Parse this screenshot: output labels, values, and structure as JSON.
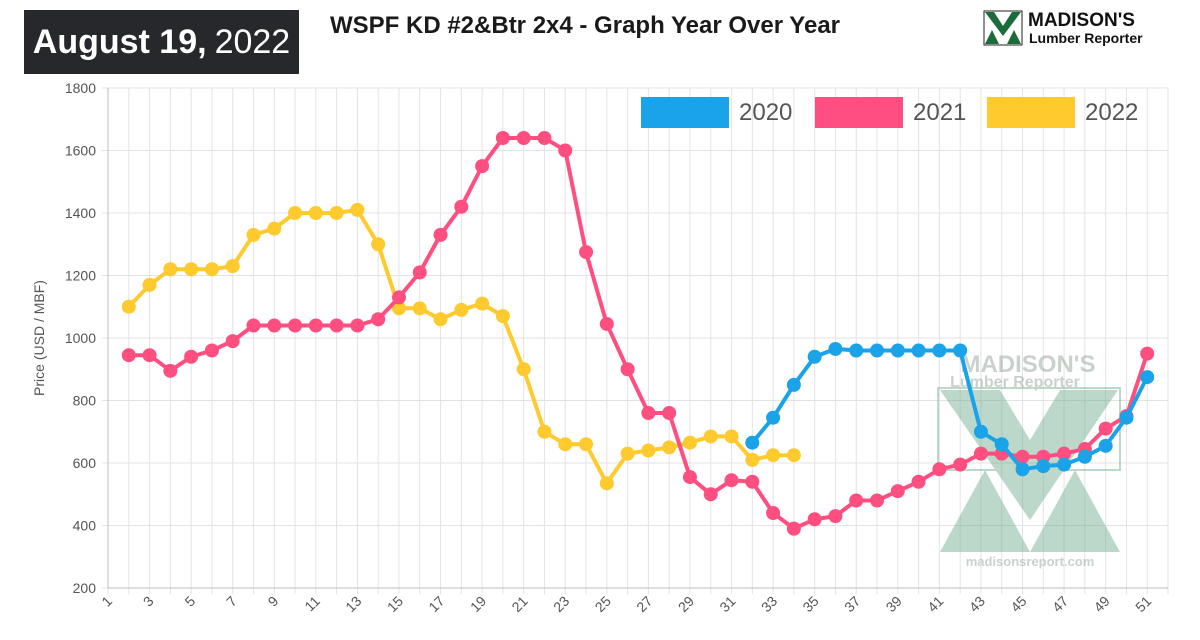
{
  "header": {
    "date_bold": "August 19,",
    "date_year": "2022",
    "title": "WSPF KD #2&Btr 2x4 - Graph Year Over Year"
  },
  "logo": {
    "line1": "MADISON'S",
    "line2": "Lumber Reporter",
    "icon": "madisons-logo-mark"
  },
  "watermark": {
    "line1": "MADISON'S",
    "line2": "Lumber Reporter",
    "url": "madisonsreport.com"
  },
  "chart_data": {
    "type": "line",
    "title": "WSPF KD #2&Btr 2x4 - Graph Year Over Year",
    "xlabel": "",
    "ylabel": "Price (USD / MBF)",
    "ylim": [
      200,
      1800
    ],
    "yticks": [
      200,
      400,
      600,
      800,
      1000,
      1200,
      1400,
      1600,
      1800
    ],
    "xlim": [
      1,
      52
    ],
    "xticks": [
      1,
      3,
      5,
      7,
      9,
      11,
      13,
      15,
      17,
      19,
      21,
      23,
      25,
      27,
      29,
      31,
      33,
      35,
      37,
      39,
      41,
      43,
      45,
      47,
      49,
      51
    ],
    "grid": true,
    "legend_position": "top-right",
    "series": [
      {
        "name": "2020",
        "color": "#1aa3e8",
        "x": [
          32,
          33,
          34,
          35,
          36,
          37,
          38,
          39,
          40,
          41,
          42,
          43,
          44,
          45,
          46,
          47,
          48,
          49,
          50,
          51
        ],
        "values": [
          665,
          745,
          850,
          940,
          965,
          960,
          960,
          960,
          960,
          960,
          960,
          700,
          660,
          580,
          590,
          595,
          620,
          655,
          745,
          875
        ]
      },
      {
        "name": "2021",
        "color": "#ff4f81",
        "x": [
          2,
          3,
          4,
          5,
          6,
          7,
          8,
          9,
          10,
          11,
          12,
          13,
          14,
          15,
          16,
          17,
          18,
          19,
          20,
          21,
          22,
          23,
          24,
          25,
          26,
          27,
          28,
          29,
          30,
          31,
          32,
          33,
          34,
          35,
          36,
          37,
          38,
          39,
          40,
          41,
          42,
          43,
          44,
          45,
          46,
          47,
          48,
          49,
          50,
          51
        ],
        "values": [
          945,
          945,
          895,
          940,
          960,
          990,
          1040,
          1040,
          1040,
          1040,
          1040,
          1040,
          1060,
          1130,
          1210,
          1330,
          1420,
          1550,
          1640,
          1640,
          1640,
          1600,
          1275,
          1045,
          900,
          760,
          760,
          555,
          500,
          545,
          540,
          440,
          390,
          420,
          430,
          480,
          480,
          510,
          540,
          580,
          595,
          630,
          630,
          620,
          620,
          630,
          645,
          710,
          750,
          950
        ]
      },
      {
        "name": "2022",
        "color": "#ffca2e",
        "x": [
          2,
          3,
          4,
          5,
          6,
          7,
          8,
          9,
          10,
          11,
          12,
          13,
          14,
          15,
          16,
          17,
          18,
          19,
          20,
          21,
          22,
          23,
          24,
          25,
          26,
          27,
          28,
          29,
          30,
          31,
          32,
          33,
          34
        ],
        "values": [
          1100,
          1170,
          1220,
          1220,
          1220,
          1230,
          1330,
          1350,
          1400,
          1400,
          1400,
          1410,
          1300,
          1095,
          1095,
          1060,
          1090,
          1110,
          1070,
          900,
          700,
          660,
          660,
          535,
          630,
          640,
          650,
          665,
          685,
          685,
          610,
          625,
          625
        ]
      }
    ]
  }
}
